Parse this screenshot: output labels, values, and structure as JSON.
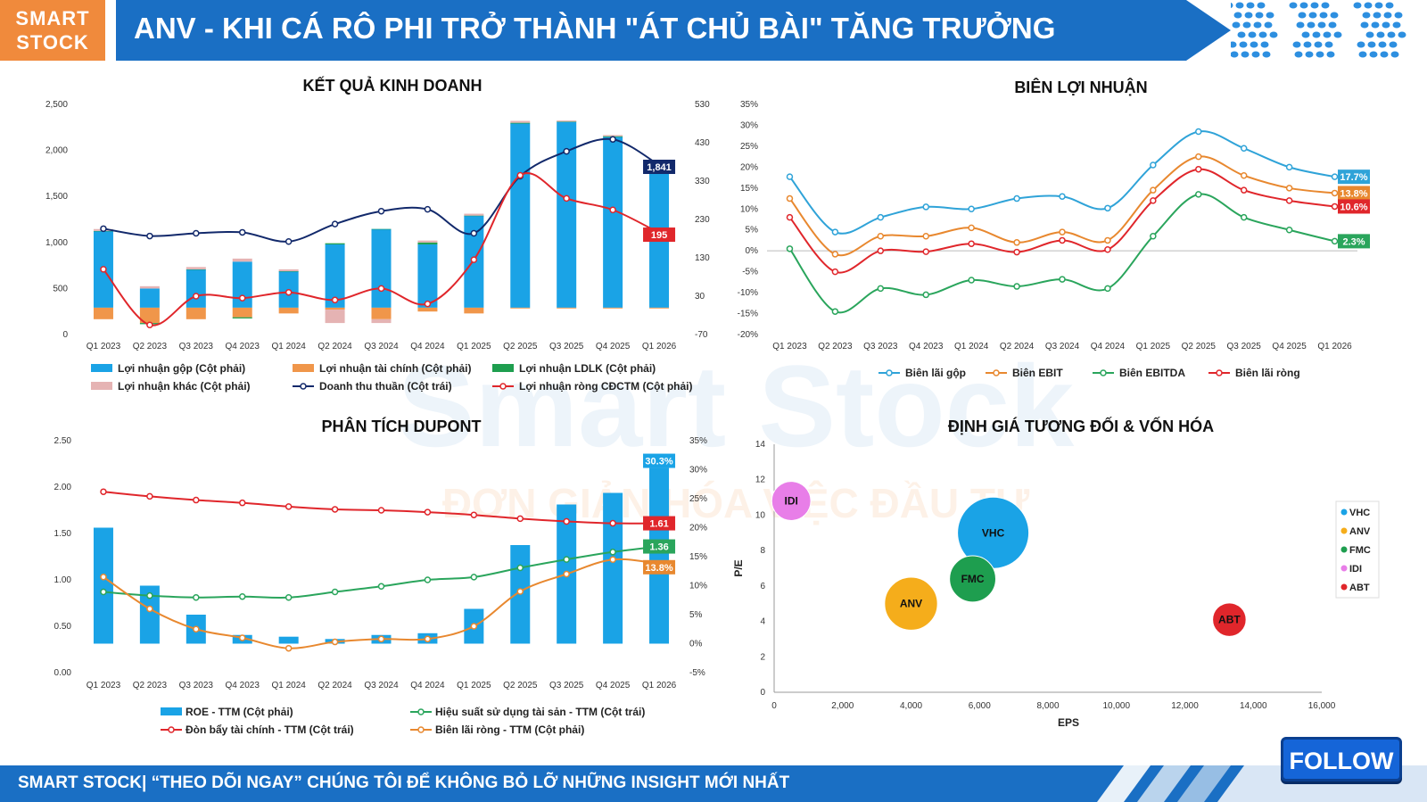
{
  "header": {
    "logo_line1": "SMART",
    "logo_line2": "STOCK",
    "title": "ANV - KHI CÁ RÔ PHI TRỞ THÀNH \"ÁT CHỦ BÀI\" TĂNG TRƯỞNG",
    "color": "#1a6fc4",
    "logo_color": "#f08a3c"
  },
  "watermark": {
    "brand": "Smart Stock",
    "tagline": "ĐƠN GIẢN HÓA VIỆC ĐẦU TƯ"
  },
  "footer": {
    "text": "SMART STOCK| “THEO DÕI NGAY” CHÚNG TÔI ĐỂ KHÔNG BỎ LỠ NHỮNG INSIGHT MỚI NHẤT",
    "follow_label": "FOLLOW"
  },
  "chart_data": [
    {
      "type": "bar",
      "title": "KẾT QUẢ KINH DOANH",
      "categories": [
        "Q1 2023",
        "Q2 2023",
        "Q3 2023",
        "Q4 2023",
        "Q1 2024",
        "Q2 2024",
        "Q3 2024",
        "Q4 2024",
        "Q1 2025",
        "Q2 2025",
        "Q3 2025",
        "Q4 2025",
        "Q1 2026"
      ],
      "left_axis": {
        "ticks": [
          "0",
          "500",
          "1,000",
          "1,500",
          "2,000",
          "2,500"
        ],
        "ylim": [
          0,
          2500
        ]
      },
      "right_axis": {
        "ticks": [
          "-70",
          "30",
          "130",
          "230",
          "330",
          "430",
          "530"
        ],
        "ylim": [
          -70,
          530
        ]
      },
      "series": [
        {
          "name": "Lợi nhuận gộp (Cột phải)",
          "axis": "right",
          "kind": "bar",
          "color": "#1aa3e6",
          "values": [
            200,
            50,
            100,
            120,
            95,
            165,
            205,
            165,
            240,
            480,
            485,
            445,
            375
          ]
        },
        {
          "name": "Lợi nhuận tài chính (Cột phải)",
          "axis": "right",
          "kind": "bar",
          "color": "#f0964a",
          "values": [
            -30,
            -40,
            -30,
            -25,
            -15,
            -5,
            -30,
            -10,
            -15,
            -2,
            -2,
            -2,
            -2
          ]
        },
        {
          "name": "Lợi nhuận LDLK (Cột phải)",
          "axis": "right",
          "kind": "bar",
          "color": "#1e9e4f",
          "values": [
            0,
            -3,
            0,
            -3,
            0,
            3,
            0,
            5,
            0,
            2,
            0,
            2,
            0
          ]
        },
        {
          "name": "Lợi nhuận khác (Cột phải)",
          "axis": "right",
          "kind": "bar",
          "color": "#e5b3b3",
          "values": [
            5,
            6,
            6,
            8,
            5,
            -35,
            -10,
            5,
            5,
            5,
            3,
            3,
            3
          ]
        },
        {
          "name": "Doanh thu thuần (Cột trái)",
          "axis": "left",
          "kind": "line",
          "color": "#12296b",
          "values": [
            1150,
            1070,
            1100,
            1110,
            1010,
            1200,
            1340,
            1360,
            1100,
            1720,
            1990,
            2120,
            1841
          ]
        },
        {
          "name": "Lợi nhuận ròng CĐCTM (Cột phải)",
          "axis": "right",
          "kind": "line",
          "color": "#e0262b",
          "values": [
            100,
            -45,
            30,
            25,
            40,
            20,
            50,
            10,
            125,
            345,
            285,
            255,
            195
          ]
        }
      ],
      "data_labels": [
        {
          "text": "1,841",
          "color": "#12296b"
        },
        {
          "text": "195",
          "color": "#e0262b"
        }
      ]
    },
    {
      "type": "line",
      "title": "BIÊN LỢI NHUẬN",
      "categories": [
        "Q1 2023",
        "Q2 2023",
        "Q3 2023",
        "Q4 2023",
        "Q1 2024",
        "Q2 2024",
        "Q3 2024",
        "Q4 2024",
        "Q1 2025",
        "Q2 2025",
        "Q3 2025",
        "Q4 2025",
        "Q1 2026"
      ],
      "y_ticks": [
        "-20%",
        "-15%",
        "-10%",
        "-5%",
        "0%",
        "5%",
        "10%",
        "15%",
        "20%",
        "25%",
        "30%",
        "35%"
      ],
      "ylim": [
        -20,
        35
      ],
      "series": [
        {
          "name": "Biên lãi gộp",
          "color": "#2fa3d8",
          "values": [
            17.7,
            4.5,
            8,
            10.5,
            10,
            12.5,
            13,
            10.2,
            20.5,
            28.5,
            24.5,
            20,
            17.7
          ]
        },
        {
          "name": "Biên EBIT",
          "color": "#e8882f",
          "values": [
            12.5,
            -0.8,
            3.5,
            3.5,
            5.5,
            2,
            4.5,
            2.5,
            14.5,
            22.5,
            18,
            15,
            13.8
          ]
        },
        {
          "name": "Biên EBITDA",
          "color": "#2aa55c",
          "values": [
            0.5,
            -14.5,
            -9,
            -10.5,
            -7,
            -8.5,
            -6.8,
            -9,
            3.5,
            13.5,
            8,
            5,
            2.3
          ]
        },
        {
          "name": "Biên lãi ròng",
          "color": "#e0262b",
          "values": [
            8,
            -5,
            0,
            -0.2,
            1.7,
            -0.3,
            2.5,
            0.3,
            12,
            19.5,
            14.5,
            12,
            10.6
          ]
        }
      ],
      "data_labels": [
        {
          "text": "17.7%",
          "color": "#2fa3d8"
        },
        {
          "text": "13.8%",
          "color": "#e8882f"
        },
        {
          "text": "10.6%",
          "color": "#e0262b"
        },
        {
          "text": "2.3%",
          "color": "#2aa55c"
        }
      ]
    },
    {
      "type": "bar",
      "title": "PHÂN TÍCH DUPONT",
      "categories": [
        "Q1 2023",
        "Q2 2023",
        "Q3 2023",
        "Q4 2023",
        "Q1 2024",
        "Q2 2024",
        "Q3 2024",
        "Q4 2024",
        "Q1 2025",
        "Q2 2025",
        "Q3 2025",
        "Q4 2025",
        "Q1 2026"
      ],
      "left_axis": {
        "ticks": [
          "0.00",
          "0.50",
          "1.00",
          "1.50",
          "2.00",
          "2.50"
        ],
        "ylim": [
          0,
          2.5
        ]
      },
      "right_axis": {
        "ticks": [
          "-5%",
          "0%",
          "5%",
          "10%",
          "15%",
          "20%",
          "25%",
          "30%",
          "35%"
        ],
        "ylim": [
          -5,
          35
        ]
      },
      "series": [
        {
          "name": "ROE - TTM (Cột phải)",
          "axis": "right",
          "kind": "bar",
          "color": "#1aa3e6",
          "values": [
            20,
            10,
            5,
            1.5,
            1.2,
            0.8,
            1.5,
            1.8,
            6,
            17,
            24,
            26,
            30.3
          ]
        },
        {
          "name": "Hiệu suất sử dụng tài sản - TTM (Cột trái)",
          "axis": "left",
          "kind": "line",
          "color": "#2aa55c",
          "values": [
            0.87,
            0.83,
            0.81,
            0.82,
            0.81,
            0.87,
            0.93,
            1,
            1.03,
            1.13,
            1.22,
            1.3,
            1.36
          ]
        },
        {
          "name": "Đòn bẩy tài chính - TTM (Cột trái)",
          "axis": "left",
          "kind": "line",
          "color": "#e0262b",
          "values": [
            1.95,
            1.9,
            1.86,
            1.83,
            1.79,
            1.76,
            1.75,
            1.73,
            1.7,
            1.66,
            1.63,
            1.61,
            1.61
          ]
        },
        {
          "name": "Biên lãi ròng - TTM (Cột phải)",
          "axis": "right",
          "kind": "line",
          "color": "#e8882f",
          "values": [
            11.5,
            6,
            2.5,
            1,
            -0.8,
            0.3,
            0.8,
            0.8,
            3,
            9,
            12,
            14.5,
            13.8
          ]
        }
      ],
      "data_labels": [
        {
          "text": "30.3%",
          "color": "#1aa3e6"
        },
        {
          "text": "1.61",
          "color": "#e0262b"
        },
        {
          "text": "1.36",
          "color": "#2aa55c"
        },
        {
          "text": "13.8%",
          "color": "#e8882f"
        }
      ]
    },
    {
      "type": "scatter",
      "title": "ĐỊNH GIÁ TƯƠNG ĐỐI & VỐN HÓA",
      "xlabel": "EPS",
      "ylabel": "P/E",
      "xlim": [
        0,
        16000
      ],
      "ylim": [
        0,
        14
      ],
      "x_ticks": [
        "0",
        "2,000",
        "4,000",
        "6,000",
        "8,000",
        "10,000",
        "12,000",
        "14,000",
        "16,000"
      ],
      "y_ticks": [
        "0",
        "2",
        "4",
        "6",
        "8",
        "10",
        "12",
        "14"
      ],
      "legend_position": "right",
      "points": [
        {
          "name": "VHC",
          "x": 6400,
          "y": 9,
          "size": 1.0,
          "color": "#1aa3e6"
        },
        {
          "name": "ANV",
          "x": 4000,
          "y": 5,
          "size": 0.55,
          "color": "#f5ad1b"
        },
        {
          "name": "FMC",
          "x": 5800,
          "y": 6.4,
          "size": 0.42,
          "color": "#1e9e4f"
        },
        {
          "name": "IDI",
          "x": 500,
          "y": 10.8,
          "size": 0.3,
          "color": "#e87ee8"
        },
        {
          "name": "ABT",
          "x": 13300,
          "y": 4.1,
          "size": 0.22,
          "color": "#e0262b"
        }
      ]
    }
  ]
}
